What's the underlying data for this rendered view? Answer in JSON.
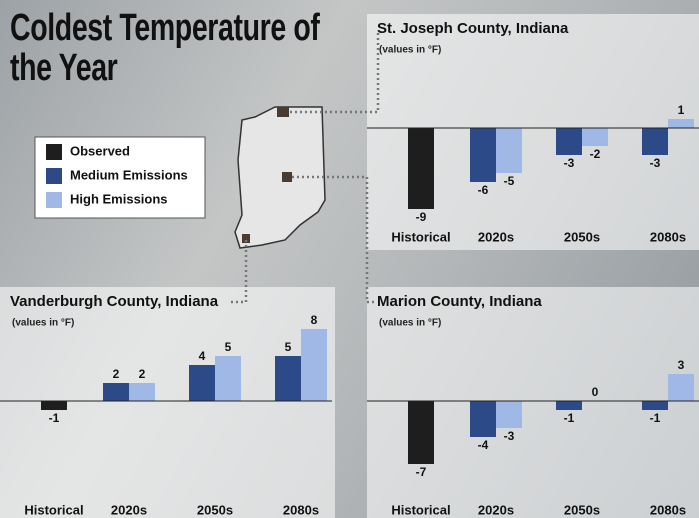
{
  "title": "Coldest Temperature of the Year",
  "chart_data": [
    {
      "type": "bar",
      "title": "St. Joseph County, Indiana",
      "subtitle": "(values in °F)",
      "categories": [
        "Historical",
        "2020s",
        "2050s",
        "2080s"
      ],
      "series": [
        {
          "name": "Observed",
          "color": "#1e1e1e",
          "values": [
            -9,
            null,
            null,
            null
          ]
        },
        {
          "name": "Medium Emissions",
          "color": "#2b4a87",
          "values": [
            null,
            -6,
            -3,
            -3
          ]
        },
        {
          "name": "High Emissions",
          "color": "#9fb8e6",
          "values": [
            null,
            -5,
            -2,
            1
          ]
        }
      ]
    },
    {
      "type": "bar",
      "title": "Vanderburgh County, Indiana",
      "subtitle": "(values in °F)",
      "categories": [
        "Historical",
        "2020s",
        "2050s",
        "2080s"
      ],
      "series": [
        {
          "name": "Observed",
          "color": "#1e1e1e",
          "values": [
            -1,
            null,
            null,
            null
          ]
        },
        {
          "name": "Medium Emissions",
          "color": "#2b4a87",
          "values": [
            null,
            2,
            4,
            5
          ]
        },
        {
          "name": "High Emissions",
          "color": "#9fb8e6",
          "values": [
            null,
            2,
            5,
            8
          ]
        }
      ]
    },
    {
      "type": "bar",
      "title": "Marion County, Indiana",
      "subtitle": "(values in °F)",
      "categories": [
        "Historical",
        "2020s",
        "2050s",
        "2080s"
      ],
      "series": [
        {
          "name": "Observed",
          "color": "#1e1e1e",
          "values": [
            -7,
            null,
            null,
            null
          ]
        },
        {
          "name": "Medium Emissions",
          "color": "#2b4a87",
          "values": [
            null,
            -4,
            -1,
            -1
          ]
        },
        {
          "name": "High Emissions",
          "color": "#9fb8e6",
          "values": [
            null,
            -3,
            0,
            3
          ]
        }
      ]
    }
  ]
}
